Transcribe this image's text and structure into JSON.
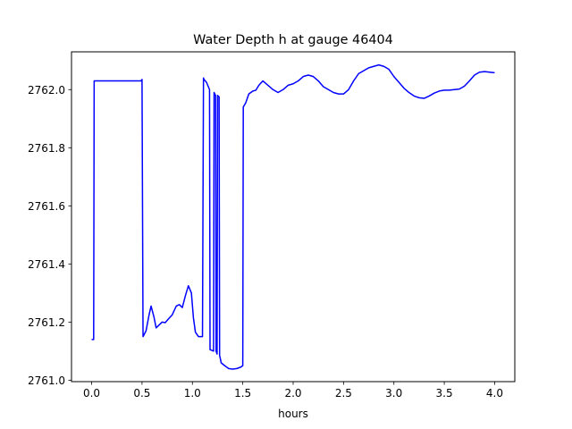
{
  "chart_data": {
    "type": "line",
    "title": "Water Depth h at gauge 46404",
    "xlabel": "hours",
    "ylabel": "",
    "xlim": [
      -0.2,
      4.2
    ],
    "ylim": [
      2760.995,
      2762.13
    ],
    "xticks": [
      0.0,
      0.5,
      1.0,
      1.5,
      2.0,
      2.5,
      3.0,
      3.5,
      4.0
    ],
    "xtick_labels": [
      "0.0",
      "0.5",
      "1.0",
      "1.5",
      "2.0",
      "2.5",
      "3.0",
      "3.5",
      "4.0"
    ],
    "yticks": [
      2761.0,
      2761.2,
      2761.4,
      2761.6,
      2761.8,
      2762.0
    ],
    "ytick_labels": [
      "2761.0",
      "2761.2",
      "2761.4",
      "2761.6",
      "2761.8",
      "2762.0"
    ],
    "grid": false,
    "series": [
      {
        "color": "#0000ff",
        "x": [
          0.0,
          0.02,
          0.025,
          0.1,
          0.3,
          0.45,
          0.49,
          0.5,
          0.51,
          0.54,
          0.57,
          0.59,
          0.62,
          0.64,
          0.67,
          0.7,
          0.73,
          0.76,
          0.8,
          0.84,
          0.87,
          0.9,
          0.93,
          0.96,
          0.99,
          1.01,
          1.03,
          1.06,
          1.08,
          1.1,
          1.11,
          1.115,
          1.14,
          1.17,
          1.175,
          1.21,
          1.215,
          1.23,
          1.235,
          1.245,
          1.25,
          1.265,
          1.27,
          1.28,
          1.285,
          1.32,
          1.36,
          1.4,
          1.44,
          1.48,
          1.5,
          1.505,
          1.53,
          1.56,
          1.6,
          1.63,
          1.66,
          1.7,
          1.75,
          1.8,
          1.85,
          1.9,
          1.95,
          2.0,
          2.05,
          2.1,
          2.15,
          2.2,
          2.25,
          2.3,
          2.35,
          2.4,
          2.45,
          2.5,
          2.55,
          2.6,
          2.65,
          2.7,
          2.75,
          2.8,
          2.85,
          2.9,
          2.95,
          3.0,
          3.05,
          3.1,
          3.15,
          3.2,
          3.25,
          3.3,
          3.35,
          3.4,
          3.45,
          3.5,
          3.55,
          3.6,
          3.65,
          3.7,
          3.75,
          3.8,
          3.85,
          3.9,
          3.95,
          4.0
        ],
        "y": [
          2761.14,
          2761.14,
          2762.03,
          2762.03,
          2762.03,
          2762.03,
          2762.03,
          2762.035,
          2761.15,
          2761.17,
          2761.225,
          2761.255,
          2761.215,
          2761.18,
          2761.19,
          2761.2,
          2761.198,
          2761.21,
          2761.225,
          2761.255,
          2761.26,
          2761.25,
          2761.29,
          2761.325,
          2761.3,
          2761.215,
          2761.165,
          2761.15,
          2761.15,
          2761.15,
          2762.04,
          2762.035,
          2762.025,
          2762.0,
          2761.105,
          2761.1,
          2761.99,
          2761.98,
          2761.1,
          2761.09,
          2761.98,
          2761.975,
          2761.085,
          2761.07,
          2761.06,
          2761.05,
          2761.04,
          2761.038,
          2761.04,
          2761.045,
          2761.05,
          2761.94,
          2761.955,
          2761.985,
          2761.995,
          2761.998,
          2762.015,
          2762.03,
          2762.015,
          2762.0,
          2761.99,
          2762.0,
          2762.015,
          2762.02,
          2762.03,
          2762.045,
          2762.05,
          2762.045,
          2762.03,
          2762.01,
          2762.0,
          2761.99,
          2761.985,
          2761.985,
          2762.0,
          2762.03,
          2762.055,
          2762.065,
          2762.075,
          2762.08,
          2762.085,
          2762.08,
          2762.07,
          2762.045,
          2762.025,
          2762.005,
          2761.99,
          2761.978,
          2761.972,
          2761.97,
          2761.978,
          2761.988,
          2761.995,
          2761.998,
          2761.998,
          2762.0,
          2762.002,
          2762.012,
          2762.03,
          2762.05,
          2762.06,
          2762.062,
          2762.06,
          2762.058
        ]
      }
    ]
  }
}
